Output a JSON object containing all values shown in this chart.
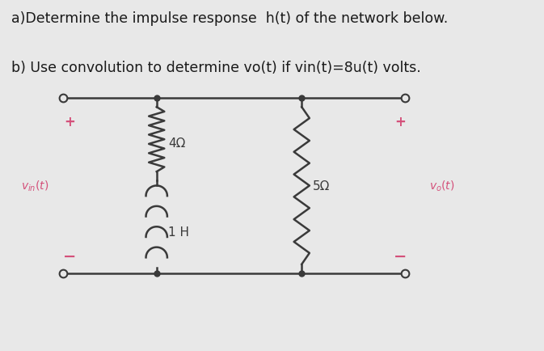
{
  "title_a": "a)Determine the impulse response  h(t) of the network below.",
  "title_b": "b) Use convolution to determine vo(t) if vin(t)=8u(t) volts.",
  "title_fontsize": 12.5,
  "bg_color": "#e8e8e8",
  "text_color": "#1a1a1a",
  "pink_color": "#d4507a",
  "circuit_color": "#3a3a3a",
  "label_4ohm": "4Ω",
  "label_5ohm": "5Ω",
  "label_1H": "1 H"
}
